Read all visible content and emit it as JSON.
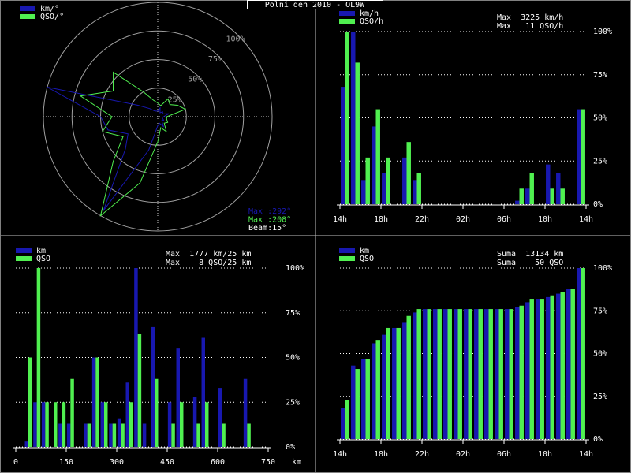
{
  "title": "Polni den 2010 - OL9W",
  "chart_data": [
    {
      "type": "polar",
      "theta": [
        0,
        15,
        30,
        45,
        60,
        75,
        90,
        105,
        120,
        135,
        150,
        165,
        180,
        195,
        210,
        225,
        240,
        255,
        270,
        285,
        300,
        315,
        330,
        345
      ],
      "series": [
        {
          "name": "km/°",
          "color": "#1818b0",
          "values": [
            5,
            8,
            4,
            6,
            5,
            10,
            5,
            4,
            6,
            5,
            10,
            6,
            8,
            30,
            95,
            40,
            30,
            45,
            50,
            100,
            20,
            10,
            6,
            5
          ]
        },
        {
          "name": "QSO/°",
          "color": "#50f050",
          "values": [
            12,
            10,
            18,
            15,
            20,
            25,
            8,
            8,
            10,
            8,
            15,
            10,
            22,
            60,
            100,
            55,
            35,
            50,
            40,
            70,
            45,
            55,
            25,
            15
          ]
        }
      ],
      "rlim": [
        0,
        100
      ],
      "rticks": [
        {
          "value": 25,
          "label": "25%"
        },
        {
          "value": 50,
          "label": "50%"
        },
        {
          "value": 75,
          "label": "75%"
        },
        {
          "value": 100,
          "label": "100%"
        }
      ],
      "annotations": [
        {
          "text": "Max :292°",
          "color": "#1818b0"
        },
        {
          "text": "Max :208°",
          "color": "#50f050"
        },
        {
          "text": "Beam:15°",
          "color": "#ffffff"
        }
      ]
    },
    {
      "type": "bar",
      "x": [
        0,
        1,
        2,
        3,
        4,
        5,
        6,
        7,
        8,
        9,
        10,
        11,
        12,
        13,
        14,
        15,
        16,
        17,
        18,
        19,
        20,
        21,
        22,
        23
      ],
      "series": [
        {
          "name": "km/h",
          "color": "#1818b0",
          "values": [
            68,
            100,
            14,
            45,
            18,
            0,
            27,
            14,
            0,
            0,
            0,
            0,
            0,
            0,
            0,
            0,
            0,
            2,
            9,
            0,
            23,
            18,
            0,
            55
          ]
        },
        {
          "name": "QSO/h",
          "color": "#50f050",
          "values": [
            100,
            82,
            27,
            55,
            27,
            0,
            36,
            18,
            0,
            0,
            0,
            0,
            0,
            0,
            0,
            0,
            0,
            9,
            18,
            0,
            9,
            9,
            0,
            55
          ]
        }
      ],
      "annotations": [
        "Max  3225 km/h",
        "Max   11 QSO/h"
      ],
      "xlim": [
        0,
        24
      ],
      "xticks": [
        {
          "value": 0,
          "label": "14h"
        },
        {
          "value": 4,
          "label": "18h"
        },
        {
          "value": 8,
          "label": "22h"
        },
        {
          "value": 12,
          "label": "02h"
        },
        {
          "value": 16,
          "label": "06h"
        },
        {
          "value": 20,
          "label": "10h"
        },
        {
          "value": 24,
          "label": "14h"
        }
      ],
      "ylim": [
        0,
        100
      ],
      "yticks": [
        {
          "value": 0,
          "label": "0%"
        },
        {
          "value": 25,
          "label": "25%"
        },
        {
          "value": 50,
          "label": "50%"
        },
        {
          "value": 75,
          "label": "75%"
        },
        {
          "value": 100,
          "label": "100%"
        }
      ],
      "grid": true
    },
    {
      "type": "bar",
      "x": [
        0,
        25,
        50,
        75,
        100,
        125,
        150,
        175,
        200,
        225,
        250,
        275,
        300,
        325,
        350,
        375,
        400,
        425,
        450,
        475,
        500,
        525,
        550,
        575,
        600,
        625,
        650,
        675,
        700,
        725
      ],
      "series": [
        {
          "name": "km",
          "color": "#1818b0",
          "values": [
            0,
            3,
            25,
            25,
            0,
            13,
            13,
            0,
            13,
            50,
            25,
            13,
            16,
            36,
            100,
            13,
            67,
            0,
            25,
            55,
            0,
            28,
            61,
            0,
            33,
            0,
            0,
            38,
            0,
            0
          ]
        },
        {
          "name": "QSO",
          "color": "#50f050",
          "values": [
            0,
            50,
            100,
            25,
            25,
            25,
            38,
            0,
            13,
            50,
            25,
            13,
            13,
            25,
            63,
            0,
            38,
            0,
            13,
            25,
            0,
            13,
            25,
            0,
            13,
            0,
            0,
            13,
            0,
            0
          ]
        }
      ],
      "annotations": [
        "Max  1777 km/25 km",
        "Max    8 QSO/25 km"
      ],
      "xlabel": "km",
      "xlim": [
        0,
        750
      ],
      "xticks": [
        0,
        150,
        300,
        450,
        600,
        750
      ],
      "ylim": [
        0,
        100
      ],
      "yticks": [
        {
          "value": 0,
          "label": "0%"
        },
        {
          "value": 25,
          "label": "25%"
        },
        {
          "value": 50,
          "label": "50%"
        },
        {
          "value": 75,
          "label": "75%"
        },
        {
          "value": 100,
          "label": "100%"
        }
      ],
      "grid": true
    },
    {
      "type": "bar",
      "x": [
        0,
        1,
        2,
        3,
        4,
        5,
        6,
        7,
        8,
        9,
        10,
        11,
        12,
        13,
        14,
        15,
        16,
        17,
        18,
        19,
        20,
        21,
        22,
        23
      ],
      "series": [
        {
          "name": "km",
          "color": "#1818b0",
          "values": [
            18,
            43,
            47,
            56,
            61,
            65,
            68,
            74,
            76,
            76,
            76,
            76,
            76,
            76,
            76,
            76,
            76,
            77,
            80,
            82,
            83,
            85,
            88,
            100
          ]
        },
        {
          "name": "QSO",
          "color": "#50f050",
          "values": [
            23,
            41,
            47,
            58,
            65,
            65,
            72,
            76,
            76,
            76,
            76,
            76,
            76,
            76,
            76,
            76,
            76,
            78,
            82,
            82,
            84,
            86,
            88,
            100
          ]
        }
      ],
      "annotations": [
        "Suma  13134 km",
        "Suma    50 QSO"
      ],
      "xlim": [
        0,
        24
      ],
      "xticks": [
        {
          "value": 0,
          "label": "14h"
        },
        {
          "value": 4,
          "label": "18h"
        },
        {
          "value": 8,
          "label": "22h"
        },
        {
          "value": 12,
          "label": "02h"
        },
        {
          "value": 16,
          "label": "06h"
        },
        {
          "value": 20,
          "label": "10h"
        },
        {
          "value": 24,
          "label": "14h"
        }
      ],
      "ylim": [
        0,
        100
      ],
      "yticks": [
        {
          "value": 0,
          "label": "0%"
        },
        {
          "value": 25,
          "label": "25%"
        },
        {
          "value": 50,
          "label": "50%"
        },
        {
          "value": 75,
          "label": "75%"
        },
        {
          "value": 100,
          "label": "100%"
        }
      ],
      "grid": true
    }
  ]
}
